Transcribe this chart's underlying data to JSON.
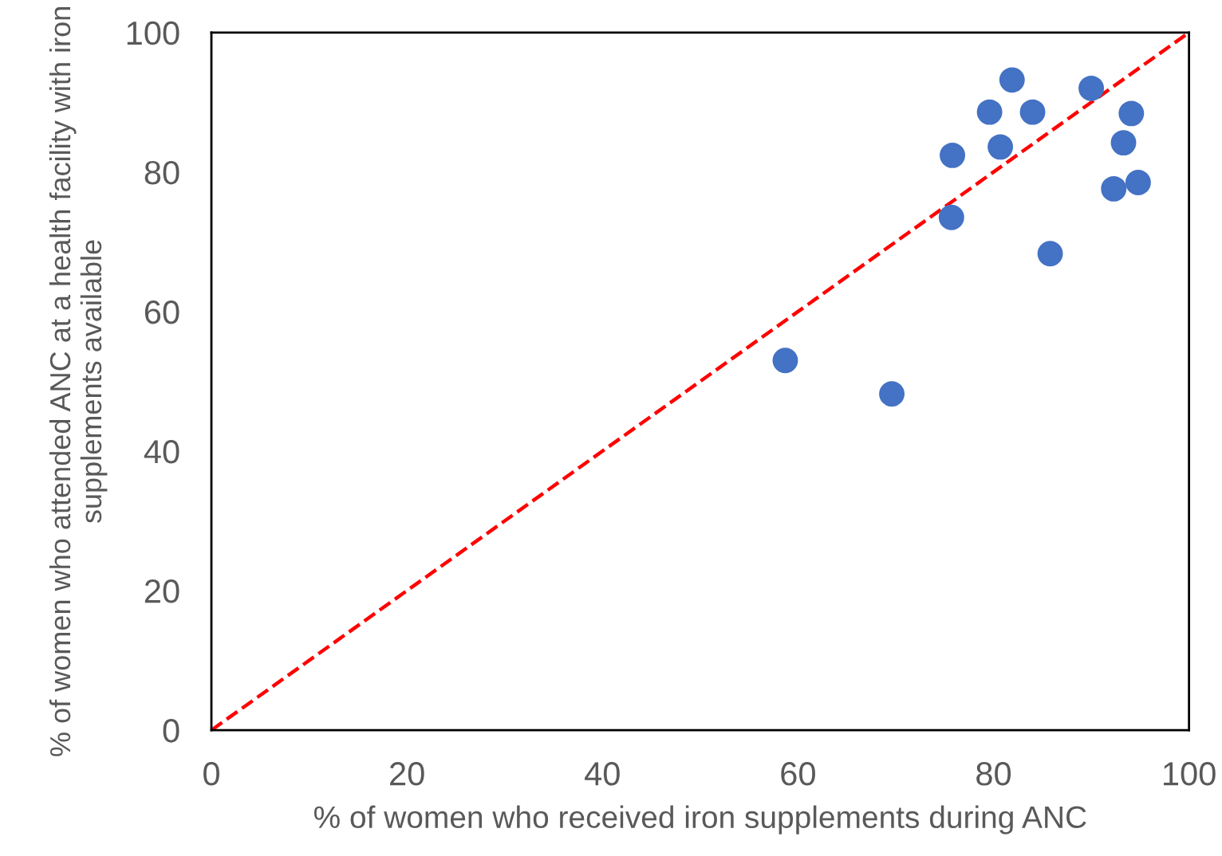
{
  "chart_data": {
    "type": "scatter",
    "xlabel": "% of women who received iron supplements during ANC",
    "ylabel": "% of women who attended ANC at a health facility with iron supplements available",
    "xlim": [
      0,
      100
    ],
    "ylim": [
      0,
      100
    ],
    "xticks": [
      0,
      20,
      40,
      60,
      80,
      100
    ],
    "yticks": [
      0,
      20,
      40,
      60,
      80,
      100
    ],
    "grid": false,
    "series": [
      {
        "marker": "circle",
        "color": "#4472c4",
        "x": [
          58.7,
          69.6,
          75.8,
          75.7,
          79.6,
          81.9,
          80.7,
          84.0,
          85.8,
          90.0,
          92.3,
          93.3,
          94.1,
          94.8
        ],
        "values": [
          53.0,
          48.2,
          82.4,
          73.5,
          88.6,
          93.2,
          83.6,
          88.6,
          68.3,
          92.0,
          77.6,
          84.2,
          88.4,
          78.5
        ]
      },
      {
        "type": "line",
        "color": "#ff0000",
        "line_style": "dashed",
        "marker": "none",
        "x": [
          0,
          100
        ],
        "values": [
          0,
          100
        ]
      }
    ]
  }
}
